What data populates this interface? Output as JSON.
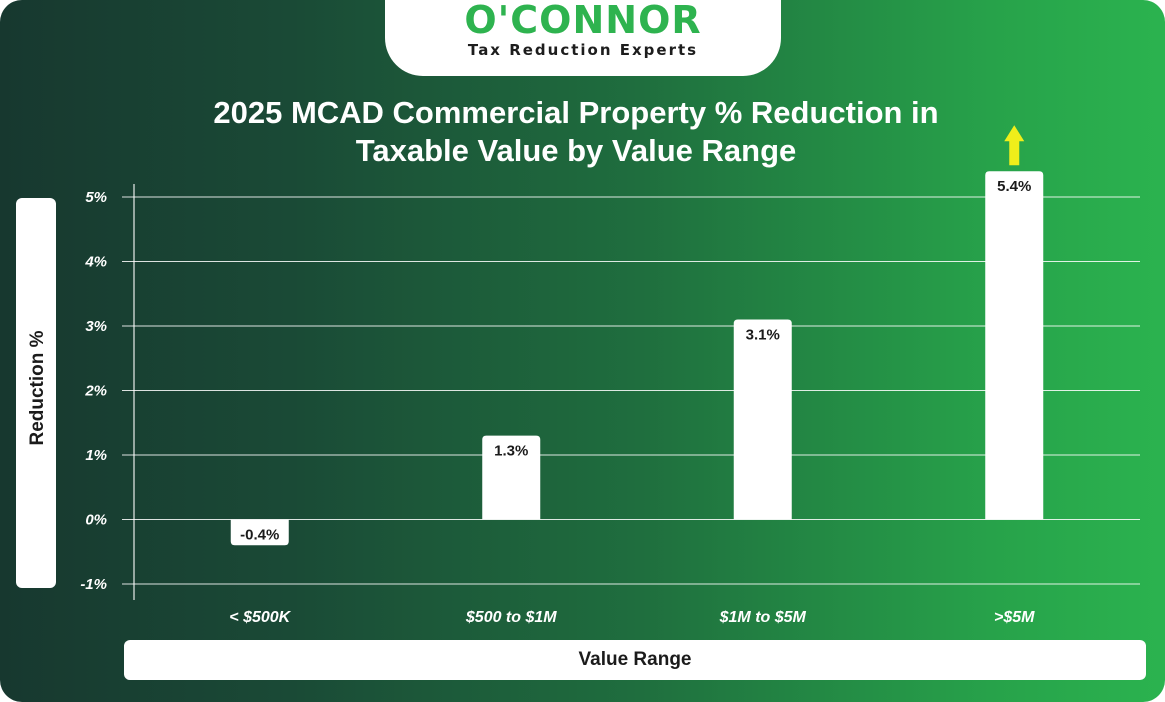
{
  "brand": {
    "name": "O'CONNOR",
    "tagline": "Tax Reduction Experts",
    "color": "#2eb34f"
  },
  "chart_data": {
    "type": "bar",
    "title": "2025 MCAD Commercial Property % Reduction in Taxable Value by Value Range",
    "title_lines": [
      "2025 MCAD Commercial Property % Reduction in",
      "Taxable Value by Value Range"
    ],
    "xlabel": "Value Range",
    "ylabel": "Reduction %",
    "categories": [
      "< $500K",
      "$500 to $1M",
      "$1M to $5M",
      ">$5M"
    ],
    "values": [
      -0.4,
      1.3,
      3.1,
      5.4
    ],
    "data_labels": [
      "-0.4%",
      "1.3%",
      "3.1%",
      "5.4%"
    ],
    "ylim": [
      -1,
      5
    ],
    "yticks": [
      -1,
      0,
      1,
      2,
      3,
      4,
      5
    ],
    "ytick_labels": [
      "-1%",
      "0%",
      "1%",
      "2%",
      "3%",
      "4%",
      "5%"
    ],
    "grid": true,
    "legend": "none",
    "bar_color": "#ffffff",
    "highlight": {
      "category": ">$5M",
      "marker": "up-arrow",
      "color": "#f0ee1a"
    }
  }
}
